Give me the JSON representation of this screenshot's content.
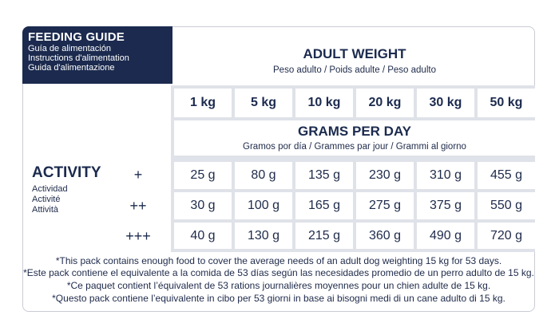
{
  "header": {
    "title": "FEEDING GUIDE",
    "sub": [
      "Guía de alimentación",
      "Instructions d'alimentation",
      "Guida d'alimentazione"
    ]
  },
  "adult_weight": {
    "title": "ADULT WEIGHT",
    "sub": "Peso adulto / Poids adulte / Peso adulto"
  },
  "weights": [
    "1 kg",
    "5 kg",
    "10 kg",
    "20 kg",
    "30 kg",
    "50 kg"
  ],
  "grams_per_day": {
    "title": "GRAMS PER DAY",
    "sub": "Gramos por día / Grammes par jour / Grammi al giorno"
  },
  "activity": {
    "title": "ACTIVITY",
    "sub": [
      "Actividad",
      "Activité",
      "Attività"
    ]
  },
  "rows": [
    {
      "level": "+",
      "values": [
        "25 g",
        "80 g",
        "135 g",
        "230 g",
        "310 g",
        "455 g"
      ]
    },
    {
      "level": "++",
      "values": [
        "30 g",
        "100 g",
        "165 g",
        "275 g",
        "375 g",
        "550 g"
      ]
    },
    {
      "level": "+++",
      "values": [
        "40 g",
        "130 g",
        "215 g",
        "360 g",
        "490 g",
        "720 g"
      ]
    }
  ],
  "notes": [
    "*This pack contains enough food to cover the average needs of an adult dog weighting 15 kg for 53 days.",
    "*Este pack contiene el equivalente a la comida de 53 días según las necesidades promedio de un perro adulto de 15 kg.",
    "*Ce paquet contient l’équivalent de 53 rations journalières moyennes pour un chien adulte de 15 kg.",
    "*Questo pack contiene l’equivalente in cibo per 53 giorni in base ai bisogni medi di un cane adulto di 15 kg."
  ],
  "colors": {
    "navy": "#1b2a4e",
    "grid": "#dfe2e8"
  }
}
